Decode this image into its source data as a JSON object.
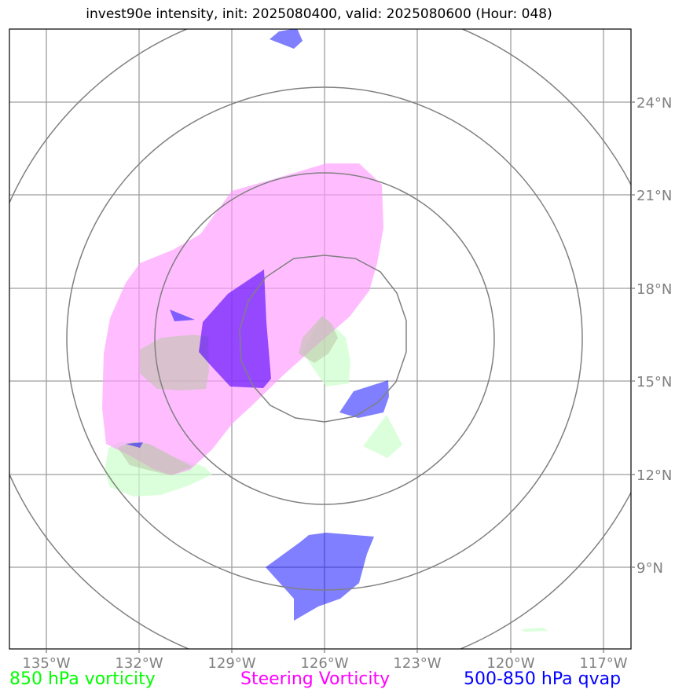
{
  "title": "invest90e intensity, init: 2025080400, valid: 2025080600 (Hour: 048)",
  "map": {
    "lon_labels": [
      "135°W",
      "132°W",
      "129°W",
      "126°W",
      "123°W",
      "120°W",
      "117°W"
    ],
    "lat_labels": [
      "24°N",
      "21°N",
      "18°N",
      "15°N",
      "12°N",
      "9°N"
    ],
    "gridline_color": "#9e9e9e",
    "ring_color": "#808080",
    "layers": [
      {
        "name": "850 hPa vorticity",
        "color": "#00ff00"
      },
      {
        "name": "Steering Vorticity",
        "color": "#ff00ff"
      },
      {
        "name": "500-850 hPa qvap",
        "color": "#0000ff"
      }
    ]
  }
}
